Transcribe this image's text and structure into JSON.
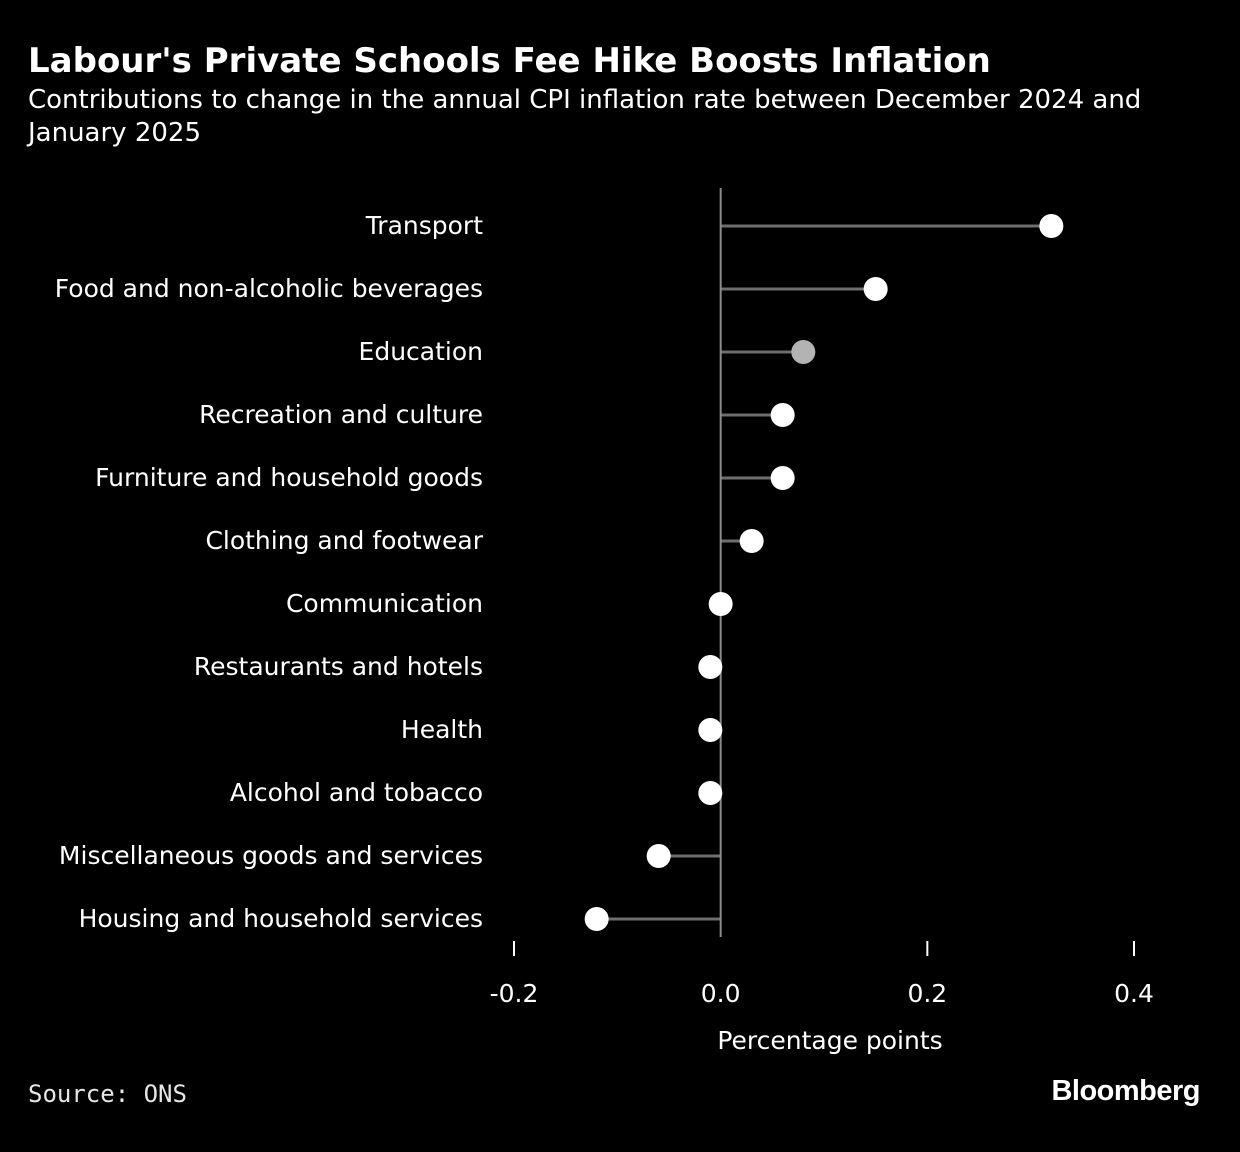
{
  "header": {
    "title": "Labour's Private Schools Fee Hike Boosts Inflation",
    "subtitle": "Contributions to change in the annual CPI inflation rate between December 2024 and January 2025"
  },
  "footer": {
    "source": "Source: ONS",
    "brand": "Bloomberg"
  },
  "colors": {
    "background": "#000000",
    "text": "#ffffff",
    "marker": "#ffffff",
    "highlight_marker": "#b3b3b3",
    "stem": "#6e6e6e",
    "axis": "#8c8c8c"
  },
  "chart_data": {
    "type": "lollipop",
    "orientation": "horizontal",
    "xlabel": "Percentage points",
    "xlim": [
      -0.2,
      0.4
    ],
    "xticks": [
      -0.2,
      0.0,
      0.2,
      0.4
    ],
    "xtick_labels": [
      "-0.2",
      "0.0",
      "0.2",
      "0.4"
    ],
    "highlight": "Education",
    "categories": [
      "Transport",
      "Food and non-alcoholic beverages",
      "Education",
      "Recreation and culture",
      "Furniture and household goods",
      "Clothing and footwear",
      "Communication",
      "Restaurants and hotels",
      "Health",
      "Alcohol and tobacco",
      "Miscellaneous goods and services",
      "Housing and household services"
    ],
    "values": [
      0.32,
      0.15,
      0.08,
      0.06,
      0.06,
      0.03,
      0.0,
      -0.01,
      -0.01,
      -0.01,
      -0.06,
      -0.12
    ]
  }
}
